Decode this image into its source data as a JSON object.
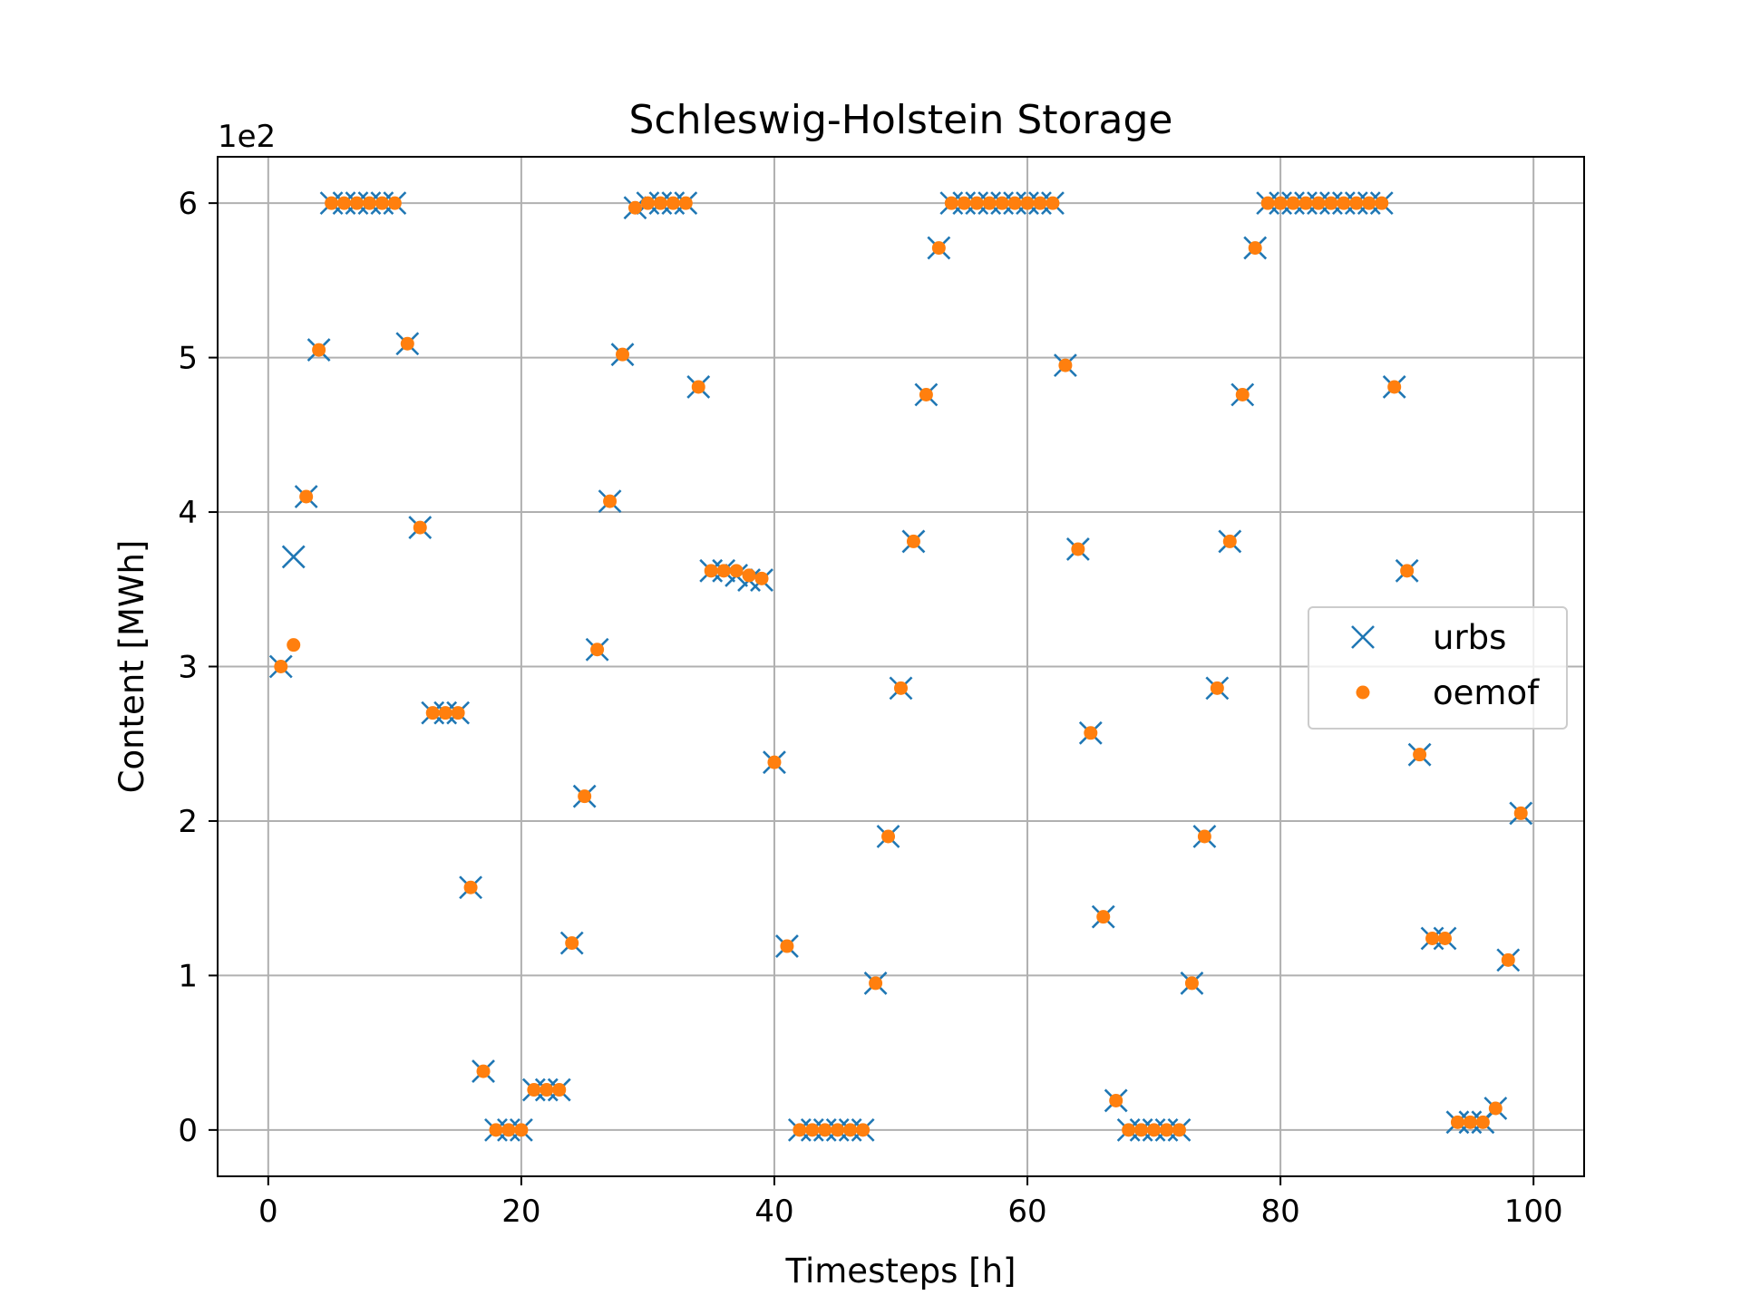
{
  "chart_data": {
    "type": "scatter",
    "title": "Schleswig-Holstein Storage",
    "xlabel": "Timesteps [h]",
    "ylabel": "Content [MWh]",
    "y_offset_label": "1e2",
    "xlim": [
      -4,
      104
    ],
    "ylim": [
      -0.3,
      6.3
    ],
    "xticks": [
      0,
      20,
      40,
      60,
      80,
      100
    ],
    "yticks": [
      0,
      1,
      2,
      3,
      4,
      5,
      6
    ],
    "grid": true,
    "legend_position": "center-right",
    "x": [
      1,
      2,
      3,
      4,
      5,
      6,
      7,
      8,
      9,
      10,
      11,
      12,
      13,
      14,
      15,
      16,
      17,
      18,
      19,
      20,
      21,
      22,
      23,
      24,
      25,
      26,
      27,
      28,
      29,
      30,
      31,
      32,
      33,
      34,
      35,
      36,
      37,
      38,
      39,
      40,
      41,
      42,
      43,
      44,
      45,
      46,
      47,
      48,
      49,
      50,
      51,
      52,
      53,
      54,
      55,
      56,
      57,
      58,
      59,
      60,
      61,
      62,
      63,
      64,
      65,
      66,
      67,
      68,
      69,
      70,
      71,
      72,
      73,
      74,
      75,
      76,
      77,
      78,
      79,
      80,
      81,
      82,
      83,
      84,
      85,
      86,
      87,
      88,
      89,
      90,
      91,
      92,
      93,
      94,
      95,
      96,
      97,
      98,
      99
    ],
    "series": [
      {
        "name": "urbs",
        "marker": "x",
        "color": "#1f77b4",
        "values": [
          3.0,
          3.71,
          4.1,
          5.05,
          6.0,
          6.0,
          6.0,
          6.0,
          6.0,
          6.0,
          5.09,
          3.9,
          2.7,
          2.7,
          2.7,
          1.57,
          0.38,
          0.0,
          0.0,
          0.0,
          0.26,
          0.26,
          0.26,
          1.21,
          2.16,
          3.11,
          4.07,
          5.02,
          5.97,
          6.0,
          6.0,
          6.0,
          6.0,
          4.81,
          3.62,
          3.62,
          3.59,
          3.56,
          3.56,
          2.38,
          1.19,
          0.0,
          0.0,
          0.0,
          0.0,
          0.0,
          0.0,
          0.95,
          1.9,
          2.86,
          3.81,
          4.76,
          5.71,
          6.0,
          6.0,
          6.0,
          6.0,
          6.0,
          6.0,
          6.0,
          6.0,
          6.0,
          4.95,
          3.76,
          2.57,
          1.38,
          0.19,
          0.0,
          0.0,
          0.0,
          0.0,
          0.0,
          0.95,
          1.9,
          2.86,
          3.81,
          4.76,
          5.71,
          6.0,
          6.0,
          6.0,
          6.0,
          6.0,
          6.0,
          6.0,
          6.0,
          6.0,
          6.0,
          4.81,
          3.62,
          2.43,
          1.24,
          1.24,
          0.05,
          0.05,
          0.05,
          0.14,
          1.1,
          2.05
        ]
      },
      {
        "name": "oemof",
        "marker": "o",
        "color": "#ff7f0e",
        "values": [
          3.0,
          3.14,
          4.1,
          5.05,
          6.0,
          6.0,
          6.0,
          6.0,
          6.0,
          6.0,
          5.09,
          3.9,
          2.7,
          2.7,
          2.7,
          1.57,
          0.38,
          0.0,
          0.0,
          0.0,
          0.26,
          0.26,
          0.26,
          1.21,
          2.16,
          3.11,
          4.07,
          5.02,
          5.97,
          6.0,
          6.0,
          6.0,
          6.0,
          4.81,
          3.62,
          3.62,
          3.62,
          3.59,
          3.57,
          2.38,
          1.19,
          0.0,
          0.0,
          0.0,
          0.0,
          0.0,
          0.0,
          0.95,
          1.9,
          2.86,
          3.81,
          4.76,
          5.71,
          6.0,
          6.0,
          6.0,
          6.0,
          6.0,
          6.0,
          6.0,
          6.0,
          6.0,
          4.95,
          3.76,
          2.57,
          1.38,
          0.19,
          0.0,
          0.0,
          0.0,
          0.0,
          0.0,
          0.95,
          1.9,
          2.86,
          3.81,
          4.76,
          5.71,
          6.0,
          6.0,
          6.0,
          6.0,
          6.0,
          6.0,
          6.0,
          6.0,
          6.0,
          6.0,
          4.81,
          3.62,
          2.43,
          1.24,
          1.24,
          0.05,
          0.05,
          0.05,
          0.14,
          1.1,
          2.05
        ]
      }
    ]
  }
}
